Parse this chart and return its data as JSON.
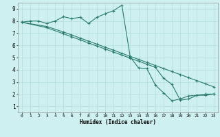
{
  "background_color": "#cff0f0",
  "grid_color": "#b0dede",
  "line_color": "#2a7a6e",
  "xlabel": "Humidex (Indice chaleur)",
  "xlim": [
    -0.5,
    23.5
  ],
  "ylim": [
    0.5,
    9.5
  ],
  "line1_x": [
    0,
    1,
    2,
    3,
    4,
    5,
    6,
    7,
    8,
    9,
    10,
    11,
    12,
    13,
    14,
    15,
    16,
    17,
    18,
    19,
    20,
    21,
    22,
    23
  ],
  "line1_y": [
    7.9,
    8.0,
    8.0,
    7.8,
    8.0,
    8.35,
    8.2,
    8.3,
    7.8,
    8.3,
    8.6,
    8.85,
    9.3,
    5.05,
    4.15,
    4.1,
    2.75,
    2.1,
    1.45,
    1.6,
    1.85,
    1.9,
    2.0,
    2.0
  ],
  "line2_x": [
    0,
    3,
    5,
    6,
    7,
    8,
    9,
    10,
    11,
    12,
    13,
    14,
    15,
    16,
    17,
    18,
    19,
    20,
    21,
    22,
    23
  ],
  "line2_y": [
    7.9,
    7.55,
    7.1,
    6.85,
    6.6,
    6.35,
    6.1,
    5.85,
    5.6,
    5.35,
    5.1,
    4.85,
    4.6,
    4.35,
    4.1,
    3.85,
    3.6,
    3.35,
    3.1,
    2.85,
    2.6
  ],
  "line3_x": [
    0,
    3,
    5,
    6,
    7,
    8,
    9,
    10,
    11,
    12,
    13,
    14,
    15,
    16,
    17,
    18,
    19,
    20,
    21,
    22,
    23
  ],
  "line3_y": [
    7.9,
    7.45,
    6.95,
    6.7,
    6.45,
    6.2,
    5.95,
    5.7,
    5.45,
    5.2,
    4.95,
    4.7,
    4.45,
    4.2,
    3.3,
    2.8,
    1.5,
    1.6,
    1.9,
    1.9,
    2.0
  ],
  "xtick_step": 1,
  "ytick_min": 1,
  "ytick_max": 9
}
